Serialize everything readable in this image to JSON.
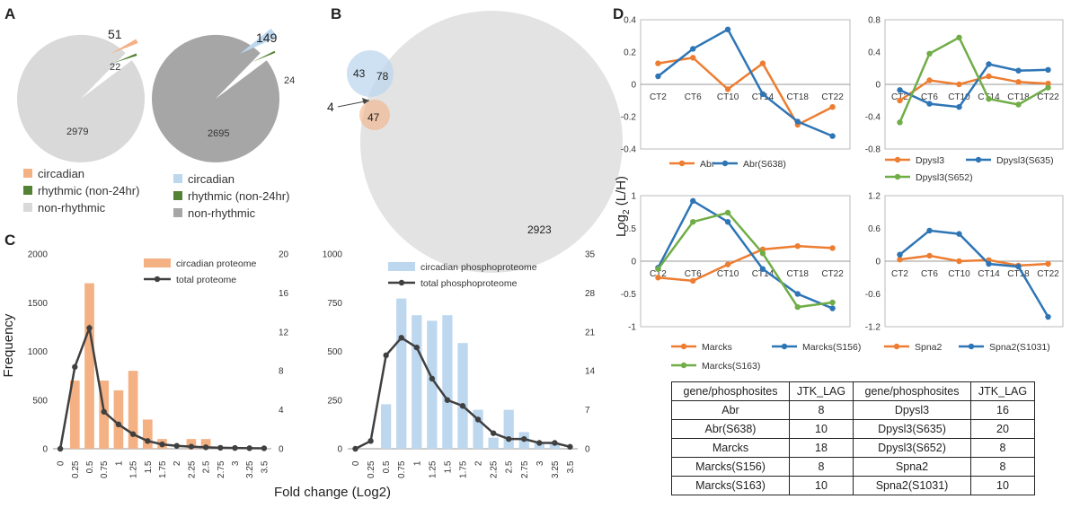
{
  "panels": {
    "a": "A",
    "b": "B",
    "c": "C",
    "d": "D"
  },
  "colors": {
    "orange": "#F4B183",
    "blue": "#BDD7EE",
    "green": "#548235",
    "grayLight": "#D9D9D9",
    "grayDark": "#A6A6A6",
    "lineDark": "#404040",
    "lineOrange": "#ED7D31",
    "lineBlue": "#2E75B6",
    "lineGreen": "#70AD47"
  },
  "pies": [
    {
      "circadian": 51,
      "rhythmic": 22,
      "non_rhythmic": 2979,
      "colors": [
        "#F4B183",
        "#548235",
        "#D9D9D9"
      ],
      "legend": [
        "circadian",
        "rhythmic (non-24hr)",
        "non-rhythmic"
      ]
    },
    {
      "circadian": 149,
      "rhythmic": 24,
      "non_rhythmic": 2695,
      "colors": [
        "#BDD7EE",
        "#548235",
        "#A6A6A6"
      ],
      "legend": [
        "circadian",
        "rhythmic (non-24hr)",
        "non-rhythmic"
      ]
    }
  ],
  "venn": {
    "blue_only": "43",
    "overlap": "78",
    "orange_only": "47",
    "center": "4",
    "big": "2923"
  },
  "chart_data": [
    {
      "type": "bar",
      "id": "circadian-proteome",
      "categories": [
        "0",
        "0.25",
        "0.5",
        "0.75",
        "1",
        "1.25",
        "1.5",
        "1.75",
        "2",
        "2.25",
        "2.5",
        "2.75",
        "3",
        "3.25",
        "3.5"
      ],
      "ylim": [
        0,
        2000
      ],
      "y2lim": [
        0,
        20
      ],
      "yticks": [
        "0",
        "500",
        "1000",
        "1500",
        "2000"
      ],
      "y2ticks": [
        "0",
        "4",
        "8",
        "12",
        "16",
        "20"
      ],
      "series": [
        {
          "name": "circadian proteome",
          "kind": "bar",
          "axis": "right",
          "values": [
            0,
            7,
            17,
            7,
            6,
            8,
            3,
            1,
            0,
            1,
            1,
            0,
            0,
            0,
            0
          ]
        },
        {
          "name": "total proteome",
          "kind": "line",
          "axis": "left",
          "values": [
            0,
            840,
            1240,
            380,
            250,
            150,
            80,
            45,
            30,
            22,
            15,
            10,
            8,
            6,
            5
          ]
        }
      ]
    },
    {
      "type": "bar",
      "id": "circadian-phosphoproteome",
      "categories": [
        "0",
        "0.25",
        "0.5",
        "0.75",
        "1",
        "1.25",
        "1.5",
        "1.75",
        "2",
        "2.25",
        "2.5",
        "2.75",
        "3",
        "3.25",
        "3.5"
      ],
      "ylim": [
        0,
        1000
      ],
      "y2lim": [
        0,
        35
      ],
      "yticks": [
        "0",
        "250",
        "500",
        "750",
        "1000"
      ],
      "y2ticks": [
        "0",
        "7",
        "14",
        "21",
        "28",
        "35"
      ],
      "series": [
        {
          "name": "circadian phosphoproteome",
          "kind": "bar",
          "axis": "right",
          "values": [
            0,
            0,
            8,
            27,
            24,
            23,
            24,
            19,
            7,
            2,
            7,
            3,
            1,
            1,
            0
          ]
        },
        {
          "name": "total phosphoproteome",
          "kind": "line",
          "axis": "left",
          "values": [
            0,
            40,
            480,
            570,
            520,
            360,
            250,
            220,
            150,
            80,
            50,
            50,
            30,
            30,
            10
          ]
        }
      ]
    },
    {
      "type": "line",
      "id": "abr",
      "categories": [
        "CT2",
        "CT6",
        "CT10",
        "CT14",
        "CT18",
        "CT22"
      ],
      "ylim": [
        -0.4,
        0.4
      ],
      "yticks": [
        "-0.4",
        "-0.2",
        "0",
        "0.2",
        "0.4"
      ],
      "series": [
        {
          "name": "Abr",
          "color": "#ED7D31",
          "values": [
            0.13,
            0.165,
            -0.03,
            0.13,
            -0.25,
            -0.14
          ]
        },
        {
          "name": "Abr(S638)",
          "color": "#2E75B6",
          "values": [
            0.05,
            0.22,
            0.34,
            -0.06,
            -0.23,
            -0.32
          ]
        }
      ]
    },
    {
      "type": "line",
      "id": "dpysl3",
      "categories": [
        "CT2",
        "CT6",
        "CT10",
        "CT14",
        "CT18",
        "CT22"
      ],
      "ylim": [
        -0.8,
        0.8
      ],
      "yticks": [
        "-0.8",
        "-0.4",
        "0",
        "0.4",
        "0.8"
      ],
      "series": [
        {
          "name": "Dpysl3",
          "color": "#ED7D31",
          "values": [
            -0.2,
            0.05,
            0.0,
            0.1,
            0.03,
            0.01
          ]
        },
        {
          "name": "Dpysl3(S635)",
          "color": "#2E75B6",
          "values": [
            -0.07,
            -0.24,
            -0.28,
            0.25,
            0.17,
            0.18
          ]
        },
        {
          "name": "Dpysl3(S652)",
          "color": "#70AD47",
          "values": [
            -0.47,
            0.38,
            0.58,
            -0.18,
            -0.25,
            -0.04
          ]
        }
      ]
    },
    {
      "type": "line",
      "id": "marcks",
      "categories": [
        "CT2",
        "CT6",
        "CT10",
        "CT14",
        "CT18",
        "CT22"
      ],
      "ylim": [
        -1,
        1
      ],
      "yticks": [
        "-1",
        "-0.5",
        "0",
        "0.5",
        "1"
      ],
      "series": [
        {
          "name": "Marcks",
          "color": "#ED7D31",
          "values": [
            -0.25,
            -0.3,
            -0.05,
            0.18,
            0.23,
            0.2
          ]
        },
        {
          "name": "Marcks(S156)",
          "color": "#2E75B6",
          "values": [
            -0.1,
            0.92,
            0.6,
            -0.12,
            -0.5,
            -0.72
          ]
        },
        {
          "name": "Marcks(S163)",
          "color": "#70AD47",
          "values": [
            -0.12,
            0.6,
            0.74,
            0.12,
            -0.7,
            -0.63
          ]
        }
      ]
    },
    {
      "type": "line",
      "id": "spna2",
      "categories": [
        "CT2",
        "CT6",
        "CT10",
        "CT14",
        "CT18",
        "CT22"
      ],
      "ylim": [
        -1.2,
        1.2
      ],
      "yticks": [
        "-1.2",
        "-0.6",
        "0",
        "0.6",
        "1.2"
      ],
      "series": [
        {
          "name": "Spna2",
          "color": "#ED7D31",
          "values": [
            0.03,
            0.1,
            0.0,
            0.02,
            -0.08,
            -0.05
          ]
        },
        {
          "name": "Spna2(S1031)",
          "color": "#2E75B6",
          "values": [
            0.12,
            0.56,
            0.5,
            -0.05,
            -0.1,
            -1.02
          ]
        }
      ]
    }
  ],
  "axes_text": {
    "c_ylabel": "Frequency",
    "c_xlabel": "Fold change (Log2)",
    "d_ylabel_main": "Log",
    "d_ylabel_sub": "2",
    "d_ylabel_tail": " (L/H)"
  },
  "table": {
    "headers": [
      "gene/phosphosites",
      "JTK_LAG",
      "gene/phosphosites",
      "JTK_LAG"
    ],
    "rows": [
      [
        "Abr",
        "8",
        "Dpysl3",
        "16"
      ],
      [
        "Abr(S638)",
        "10",
        "Dpysl3(S635)",
        "20"
      ],
      [
        "Marcks",
        "18",
        "Dpysl3(S652)",
        "8"
      ],
      [
        "Marcks(S156)",
        "8",
        "Spna2",
        "8"
      ],
      [
        "Marcks(S163)",
        "10",
        "Spna2(S1031)",
        "10"
      ]
    ]
  }
}
